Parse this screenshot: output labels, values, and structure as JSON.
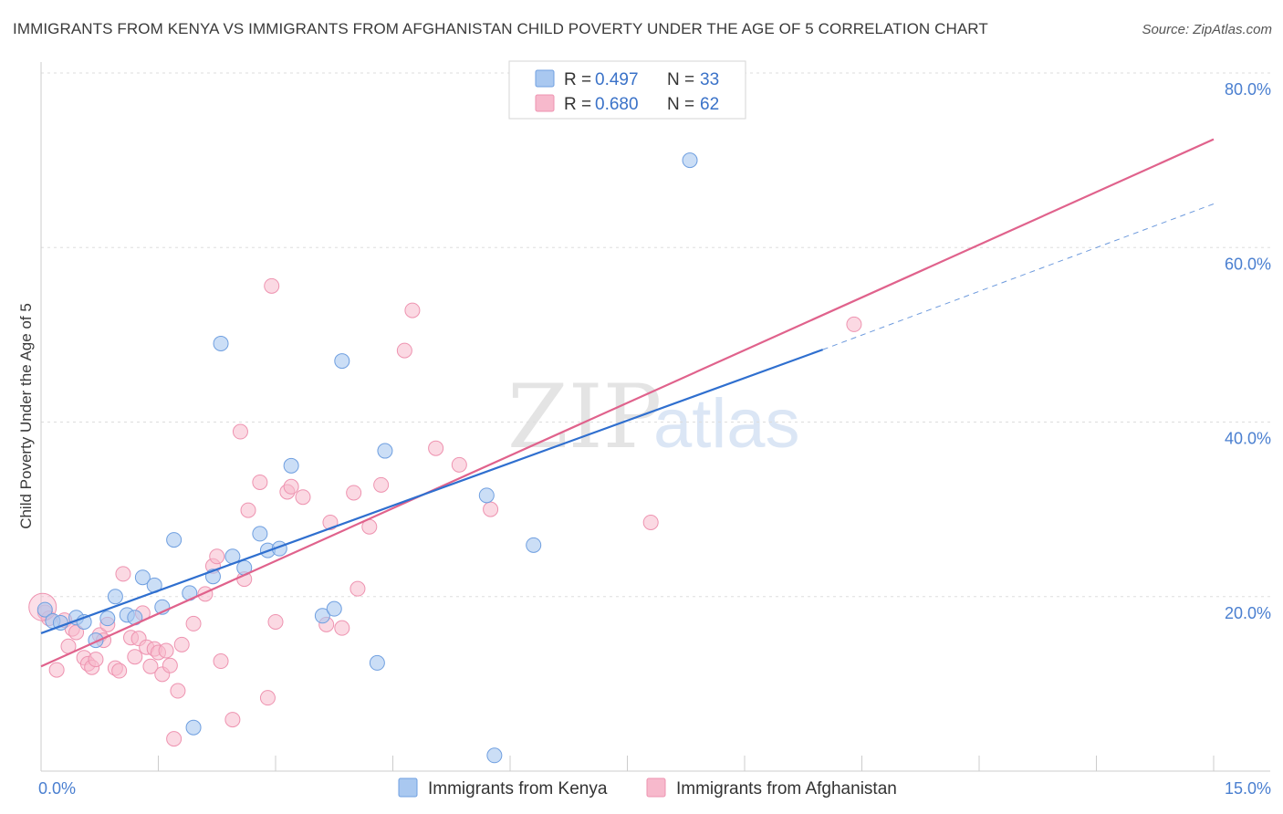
{
  "header": {
    "title": "IMMIGRANTS FROM KENYA VS IMMIGRANTS FROM AFGHANISTAN CHILD POVERTY UNDER THE AGE OF 5 CORRELATION CHART",
    "source": "Source: ZipAtlas.com"
  },
  "watermark": {
    "zip": "ZIP",
    "atlas": "atlas"
  },
  "legend": {
    "kenya": {
      "r_label": "R =",
      "r_value": "0.497",
      "n_label": "N =",
      "n_value": "33"
    },
    "afghanistan": {
      "r_label": "R =",
      "r_value": "0.680",
      "n_label": "N =",
      "n_value": "62"
    }
  },
  "colors": {
    "kenya_fill": "#a9c8f0",
    "kenya_stroke": "#6f9fe0",
    "kenya_line": "#2f6fcf",
    "afghan_fill": "#f7b9cc",
    "afghan_stroke": "#ee93b0",
    "afghan_line": "#e0628c"
  },
  "chart_data": {
    "type": "scatter",
    "title": "IMMIGRANTS FROM KENYA VS IMMIGRANTS FROM AFGHANISTAN CHILD POVERTY UNDER THE AGE OF 5 CORRELATION CHART",
    "xlabel": "",
    "ylabel": "Child Poverty Under the Age of 5",
    "xlim": [
      0,
      15
    ],
    "ylim": [
      0,
      82
    ],
    "x_tick_labels": [
      {
        "value": 0,
        "label": "0.0%"
      },
      {
        "value": 15,
        "label": "15.0%"
      }
    ],
    "y_tick_labels": [
      {
        "value": 20,
        "label": "20.0%"
      },
      {
        "value": 40,
        "label": "40.0%"
      },
      {
        "value": 60,
        "label": "60.0%"
      },
      {
        "value": 80,
        "label": "80.0%"
      }
    ],
    "series": [
      {
        "name": "Immigrants from Kenya",
        "color": "#6f9fe0",
        "points": [
          [
            0.05,
            18.5
          ],
          [
            0.15,
            17.2
          ],
          [
            0.25,
            17.0
          ],
          [
            0.45,
            17.6
          ],
          [
            0.55,
            17.1
          ],
          [
            0.7,
            15.0
          ],
          [
            0.85,
            17.5
          ],
          [
            0.95,
            20.0
          ],
          [
            1.1,
            17.9
          ],
          [
            1.2,
            17.6
          ],
          [
            1.3,
            22.2
          ],
          [
            1.45,
            21.3
          ],
          [
            1.55,
            18.8
          ],
          [
            1.7,
            26.5
          ],
          [
            1.9,
            20.4
          ],
          [
            1.95,
            5.0
          ],
          [
            2.2,
            22.3
          ],
          [
            2.3,
            49.0
          ],
          [
            2.45,
            24.6
          ],
          [
            2.6,
            23.3
          ],
          [
            2.8,
            27.2
          ],
          [
            2.9,
            25.3
          ],
          [
            3.05,
            25.5
          ],
          [
            3.2,
            35.0
          ],
          [
            3.6,
            17.8
          ],
          [
            3.75,
            18.6
          ],
          [
            3.85,
            47.0
          ],
          [
            4.3,
            12.4
          ],
          [
            4.4,
            36.7
          ],
          [
            5.7,
            31.6
          ],
          [
            5.8,
            1.8
          ],
          [
            6.3,
            25.9
          ],
          [
            8.3,
            70.0
          ]
        ],
        "trend": {
          "x_start": 0,
          "y_start": 15.8,
          "x_solid_end": 10.0,
          "y_solid_end": 48.3,
          "x_dash_end": 15.0,
          "y_dash_end": 65.0
        }
      },
      {
        "name": "Immigrants from Afghanistan",
        "color": "#ee93b0",
        "points": [
          [
            0.05,
            18.2
          ],
          [
            0.1,
            17.5
          ],
          [
            0.2,
            11.6
          ],
          [
            0.3,
            17.3
          ],
          [
            0.35,
            14.3
          ],
          [
            0.4,
            16.3
          ],
          [
            0.45,
            15.9
          ],
          [
            0.55,
            13.0
          ],
          [
            0.6,
            12.3
          ],
          [
            0.65,
            11.9
          ],
          [
            0.7,
            12.8
          ],
          [
            0.75,
            15.6
          ],
          [
            0.8,
            15.0
          ],
          [
            0.85,
            16.8
          ],
          [
            0.95,
            11.8
          ],
          [
            1.0,
            11.5
          ],
          [
            1.05,
            22.6
          ],
          [
            1.15,
            15.3
          ],
          [
            1.2,
            13.1
          ],
          [
            1.25,
            15.2
          ],
          [
            1.3,
            18.1
          ],
          [
            1.35,
            14.2
          ],
          [
            1.4,
            12.0
          ],
          [
            1.45,
            14.0
          ],
          [
            1.5,
            13.6
          ],
          [
            1.55,
            11.1
          ],
          [
            1.65,
            12.1
          ],
          [
            1.6,
            13.8
          ],
          [
            1.7,
            3.7
          ],
          [
            1.75,
            9.2
          ],
          [
            1.8,
            14.5
          ],
          [
            1.95,
            16.9
          ],
          [
            2.1,
            20.3
          ],
          [
            2.2,
            23.5
          ],
          [
            2.25,
            24.6
          ],
          [
            2.3,
            12.6
          ],
          [
            2.45,
            5.9
          ],
          [
            2.55,
            38.9
          ],
          [
            2.6,
            22.0
          ],
          [
            2.65,
            29.9
          ],
          [
            2.8,
            33.1
          ],
          [
            2.9,
            8.4
          ],
          [
            2.95,
            55.6
          ],
          [
            3.0,
            17.1
          ],
          [
            3.15,
            32.0
          ],
          [
            3.2,
            32.6
          ],
          [
            3.35,
            31.4
          ],
          [
            3.65,
            16.8
          ],
          [
            3.7,
            28.5
          ],
          [
            3.85,
            16.4
          ],
          [
            4.0,
            31.9
          ],
          [
            4.05,
            20.9
          ],
          [
            4.2,
            28.0
          ],
          [
            4.35,
            32.8
          ],
          [
            4.65,
            48.2
          ],
          [
            4.75,
            52.8
          ],
          [
            5.05,
            37.0
          ],
          [
            5.35,
            35.1
          ],
          [
            5.75,
            30.0
          ],
          [
            7.8,
            28.5
          ],
          [
            10.4,
            51.2
          ],
          [
            0.02,
            18.8
          ]
        ],
        "trend": {
          "x_start": 0,
          "y_start": 12.0,
          "x_end": 15.0,
          "y_end": 72.4
        }
      }
    ]
  },
  "bottom_legend": {
    "kenya_label": "Immigrants from Kenya",
    "afghan_label": "Immigrants from Afghanistan"
  }
}
